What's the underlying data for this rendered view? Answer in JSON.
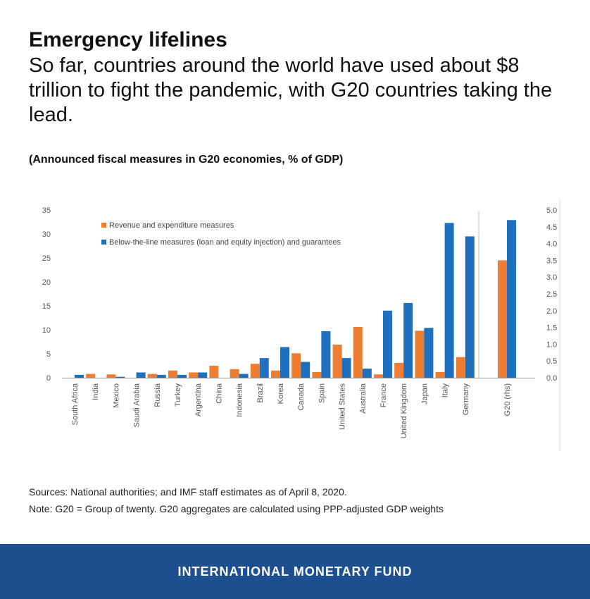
{
  "header": {
    "headline": "Emergency lifelines",
    "subhead": "So far, countries around the world have used about $8 trillion to fight the pandemic, with G20 countries taking the lead."
  },
  "chart_data": {
    "type": "bar",
    "title": "(Announced fiscal measures in G20 economies, % of GDP)",
    "categories": [
      "South Africa",
      "India",
      "Mexico",
      "Saudi Arabia",
      "Russia",
      "Turkey",
      "Argentina",
      "China",
      "Indonesia",
      "Brazil",
      "Korea",
      "Canada",
      "Spain",
      "United States",
      "Australia",
      "France",
      "United Kingdom",
      "Japan",
      "Italy",
      "Germany"
    ],
    "series": [
      {
        "name": "Revenue and expenditure measures",
        "color": "#ed7d31",
        "values": [
          0,
          0.8,
          0.7,
          0,
          0.8,
          1.5,
          1.1,
          2.5,
          1.8,
          2.9,
          1.5,
          5.1,
          1.2,
          6.9,
          10.6,
          0.7,
          3.1,
          9.8,
          1.2,
          4.3
        ]
      },
      {
        "name": "Below-the-line measures (loan and equity injection) and guarantees",
        "color": "#1f6fc0",
        "values": [
          0.6,
          0,
          0.2,
          1.1,
          0.6,
          0.6,
          1.1,
          0,
          0.8,
          4.1,
          6.4,
          3.3,
          9.7,
          4.1,
          1.9,
          14.0,
          15.6,
          10.4,
          32.3,
          29.5
        ]
      }
    ],
    "secondary": {
      "category": "G20 (rhs)",
      "values": [
        3.5,
        4.7
      ]
    },
    "ylim": [
      0,
      35
    ],
    "yticks": [
      "35",
      "30",
      "25",
      "20",
      "15",
      "10",
      "5",
      "0"
    ],
    "y2lim": [
      0,
      5
    ],
    "y2ticks": [
      "5.0",
      "4.5",
      "4.0",
      "3.5",
      "3.0",
      "2.5",
      "2.0",
      "1.5",
      "1.0",
      "0.5",
      "0.0"
    ],
    "legend": "top-left"
  },
  "footer_notes": {
    "sources": "Sources: National authorities; and IMF staff estimates as of April 8, 2020.",
    "note": "Note: G20 = Group of twenty. G20 aggregates are calculated using PPP-adjusted GDP weights"
  },
  "footer": {
    "brand": "INTERNATIONAL MONETARY FUND",
    "background": "#1d4f91"
  }
}
